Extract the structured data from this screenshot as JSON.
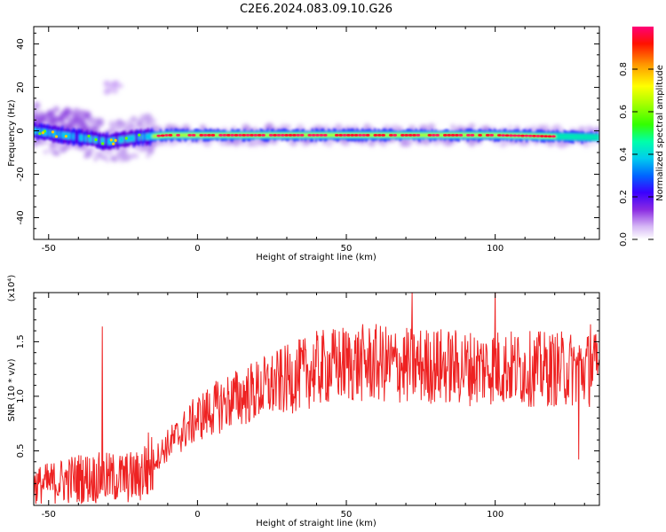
{
  "title": "C2E6.2024.083.09.10.G26",
  "chart_data": [
    {
      "type": "heatmap",
      "xlabel": "Height of straight line (km)",
      "ylabel": "Frequency (Hz)",
      "xlim": [
        -55,
        135
      ],
      "ylim": [
        -50,
        48
      ],
      "x_ticks": [
        -50,
        0,
        50,
        100
      ],
      "y_ticks": [
        -40,
        -20,
        0,
        20,
        40
      ],
      "colorbar": {
        "label": "Normalized spectral amplitude",
        "range": [
          0,
          1
        ],
        "ticks": [
          0.0,
          0.2,
          0.4,
          0.6,
          0.8
        ],
        "colormap": [
          "#ffffff",
          "#c9a0f0",
          "#8a2be2",
          "#3300ff",
          "#0099ff",
          "#00e5e5",
          "#00ff66",
          "#66ff00",
          "#ffff00",
          "#ff9900",
          "#ff0000",
          "#ff0066"
        ]
      },
      "ridge": {
        "description_points": [
          {
            "x": -55,
            "freq": 0
          },
          {
            "x": -40,
            "freq": -3
          },
          {
            "x": -30,
            "freq": -5
          },
          {
            "x": -20,
            "freq": -3
          },
          {
            "x": -10,
            "freq": -2
          },
          {
            "x": 0,
            "freq": -2
          },
          {
            "x": 50,
            "freq": -2
          },
          {
            "x": 100,
            "freq": -2
          },
          {
            "x": 135,
            "freq": -3
          }
        ],
        "strong_segment_x": [
          -15,
          120
        ],
        "side_blob": {
          "x": -28,
          "freq": 20
        }
      }
    },
    {
      "type": "line",
      "xlabel": "Height of straight line (km)",
      "ylabel": "SNR (10 * v/v)",
      "y_multiplier": "(x10⁴)",
      "xlim": [
        -55,
        135
      ],
      "ylim": [
        0,
        19500
      ],
      "x_ticks": [
        -50,
        0,
        50,
        100
      ],
      "y_ticks": [
        5000,
        10000,
        15000
      ],
      "y_tick_labels": [
        "0.5",
        "1.0",
        "1.5"
      ],
      "color": "#ee2222",
      "trend": [
        {
          "x": -55,
          "y": 1800
        },
        {
          "x": -40,
          "y": 2500
        },
        {
          "x": -30,
          "y": 2500
        },
        {
          "x": -20,
          "y": 2600
        },
        {
          "x": -10,
          "y": 5500
        },
        {
          "x": 0,
          "y": 8000
        },
        {
          "x": 10,
          "y": 9500
        },
        {
          "x": 20,
          "y": 10500
        },
        {
          "x": 30,
          "y": 11500
        },
        {
          "x": 40,
          "y": 12500
        },
        {
          "x": 50,
          "y": 13000
        },
        {
          "x": 60,
          "y": 13000
        },
        {
          "x": 70,
          "y": 12800
        },
        {
          "x": 80,
          "y": 12800
        },
        {
          "x": 90,
          "y": 12600
        },
        {
          "x": 100,
          "y": 12700
        },
        {
          "x": 110,
          "y": 12500
        },
        {
          "x": 120,
          "y": 12500
        },
        {
          "x": 135,
          "y": 12500
        }
      ],
      "spikes": [
        {
          "x": -32,
          "y": 16400
        },
        {
          "x": 72,
          "y": 19500
        },
        {
          "x": 100,
          "y": 19800
        },
        {
          "x": 128,
          "y": 4200
        },
        {
          "x": 132,
          "y": 16600
        }
      ]
    }
  ]
}
